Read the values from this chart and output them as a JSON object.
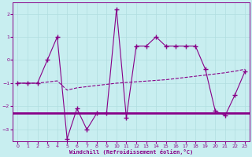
{
  "xlabel": "Windchill (Refroidissement éolien,°C)",
  "background_color": "#c8eef0",
  "grid_color": "#b0dde0",
  "line_color": "#880088",
  "xlim": [
    -0.5,
    23.5
  ],
  "ylim": [
    -3.5,
    2.5
  ],
  "yticks": [
    -3,
    -2,
    -1,
    0,
    1,
    2
  ],
  "xticks": [
    0,
    1,
    2,
    3,
    4,
    5,
    6,
    7,
    8,
    9,
    10,
    11,
    12,
    13,
    14,
    15,
    16,
    17,
    18,
    19,
    20,
    21,
    22,
    23
  ],
  "flat_y": -2.3,
  "trend_x": [
    0,
    1,
    2,
    3,
    4,
    5,
    6,
    7,
    8,
    9,
    10,
    11,
    12,
    13,
    14,
    15,
    16,
    17,
    18,
    19,
    20,
    21,
    22,
    23
  ],
  "trend_y": [
    -1.0,
    -1.0,
    -1.0,
    -0.95,
    -0.9,
    -1.3,
    -1.2,
    -1.15,
    -1.1,
    -1.05,
    -1.0,
    -0.97,
    -0.94,
    -0.91,
    -0.88,
    -0.85,
    -0.8,
    -0.75,
    -0.7,
    -0.65,
    -0.6,
    -0.55,
    -0.48,
    -0.4
  ],
  "main_x": [
    0,
    1,
    2,
    3,
    4,
    5,
    6,
    7,
    8,
    9,
    10,
    11,
    12,
    13,
    14,
    15,
    16,
    17,
    18,
    19,
    20,
    21,
    22,
    23
  ],
  "main_y": [
    -1.0,
    -1.0,
    -1.0,
    0.0,
    1.0,
    -3.4,
    -2.1,
    -3.0,
    -2.3,
    -2.3,
    2.2,
    -2.5,
    0.6,
    0.6,
    1.0,
    0.6,
    0.6,
    0.6,
    0.6,
    -0.4,
    -2.2,
    -2.4,
    -1.5,
    -0.5
  ]
}
